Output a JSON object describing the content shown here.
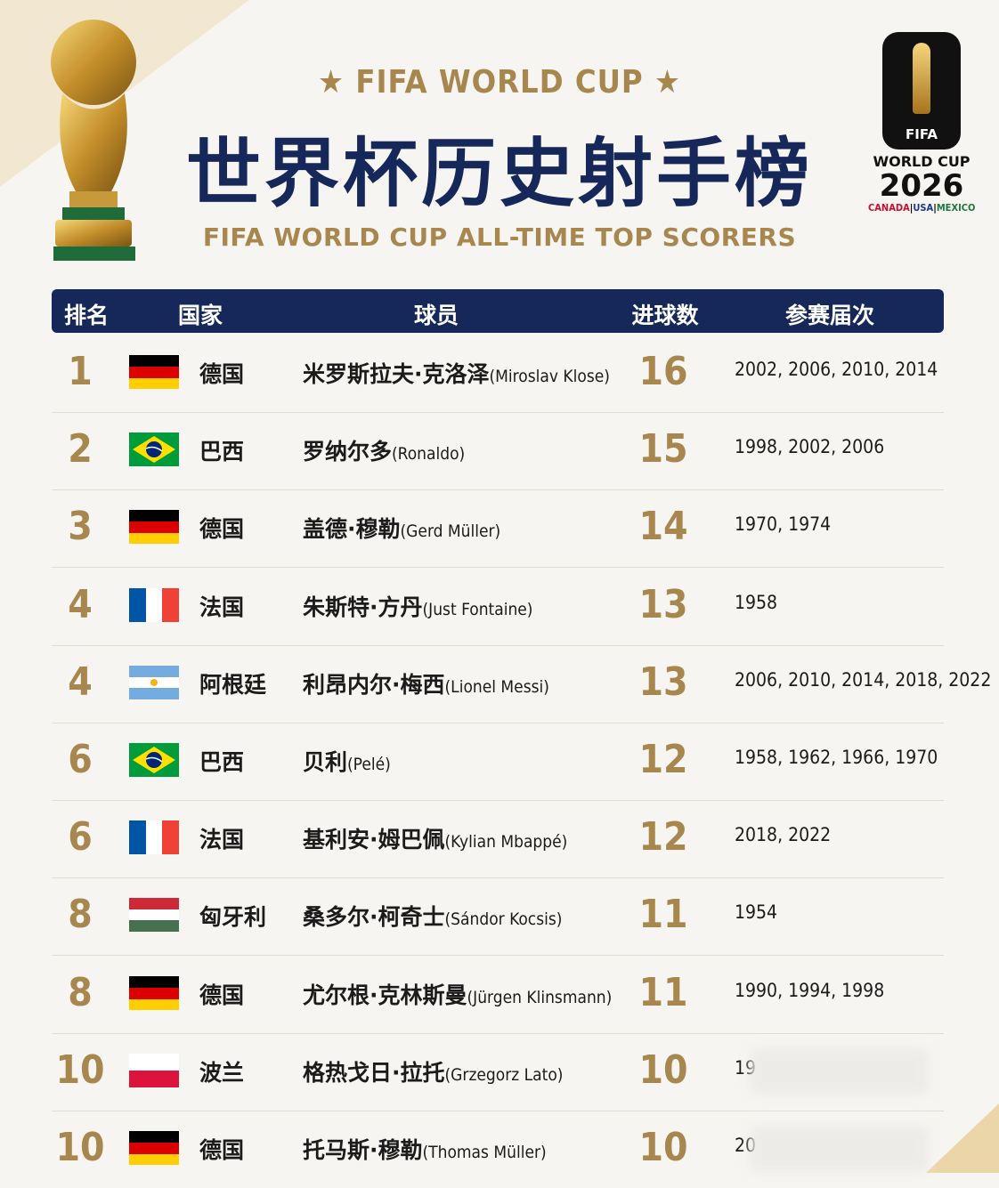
{
  "header": {
    "top_title": "★ FIFA WORLD CUP ★",
    "title": "世界杯历史射手榜",
    "subtitle": "FIFA WORLD CUP ALL-TIME TOP SCORERS"
  },
  "logo": {
    "fifa": "FIFA",
    "line1": "WORLD CUP",
    "year": "2026",
    "hosts": [
      "CANADA",
      "USA",
      "MEXICO"
    ]
  },
  "table": {
    "columns": [
      "排名",
      "国家",
      "球员",
      "进球数",
      "参赛届次"
    ],
    "rows": [
      {
        "rank": 1,
        "country": "德国",
        "player": "米罗斯拉夫·克洛泽",
        "player_en": "(Miroslav Klose)",
        "goals": 16,
        "tournaments": "2002, 2006, 2010, 2014"
      },
      {
        "rank": 2,
        "country": "巴西",
        "player": "罗纳尔多",
        "player_en": "(Ronaldo)",
        "goals": 15,
        "tournaments": "1998, 2002, 2006"
      },
      {
        "rank": 3,
        "country": "德国",
        "player": "盖德·穆勒",
        "player_en": "(Gerd Müller)",
        "goals": 14,
        "tournaments": "1970, 1974"
      },
      {
        "rank": 4,
        "country": "法国",
        "player": "朱斯特·方丹",
        "player_en": "(Just Fontaine)",
        "goals": 13,
        "tournaments": "1958"
      },
      {
        "rank": 4,
        "country": "阿根廷",
        "player": "利昂内尔·梅西",
        "player_en": "(Lionel Messi)",
        "goals": 13,
        "tournaments": "2006, 2010, 2014, 2018, 2022"
      },
      {
        "rank": 6,
        "country": "巴西",
        "player": "贝利",
        "player_en": "(Pelé)",
        "goals": 12,
        "tournaments": "1958, 1962, 1966, 1970"
      },
      {
        "rank": 6,
        "country": "法国",
        "player": "基利安·姆巴佩",
        "player_en": "(Kylian Mbappé)",
        "goals": 12,
        "tournaments": "2018, 2022"
      },
      {
        "rank": 8,
        "country": "匈牙利",
        "player": "桑多尔·柯奇士",
        "player_en": "(Sándor Kocsis)",
        "goals": 11,
        "tournaments": "1954"
      },
      {
        "rank": 8,
        "country": "德国",
        "player": "尤尔根·克林斯曼",
        "player_en": "(Jürgen Klinsmann)",
        "goals": 11,
        "tournaments": "1990, 1994, 1998"
      },
      {
        "rank": 10,
        "country": "波兰",
        "player": "格热戈日·拉托",
        "player_en": "(Grzegorz Lato)",
        "goals": 10,
        "tournaments": "19"
      },
      {
        "rank": 10,
        "country": "德国",
        "player": "托马斯·穆勒",
        "player_en": "(Thomas Müller)",
        "goals": 10,
        "tournaments": "20"
      }
    ]
  }
}
